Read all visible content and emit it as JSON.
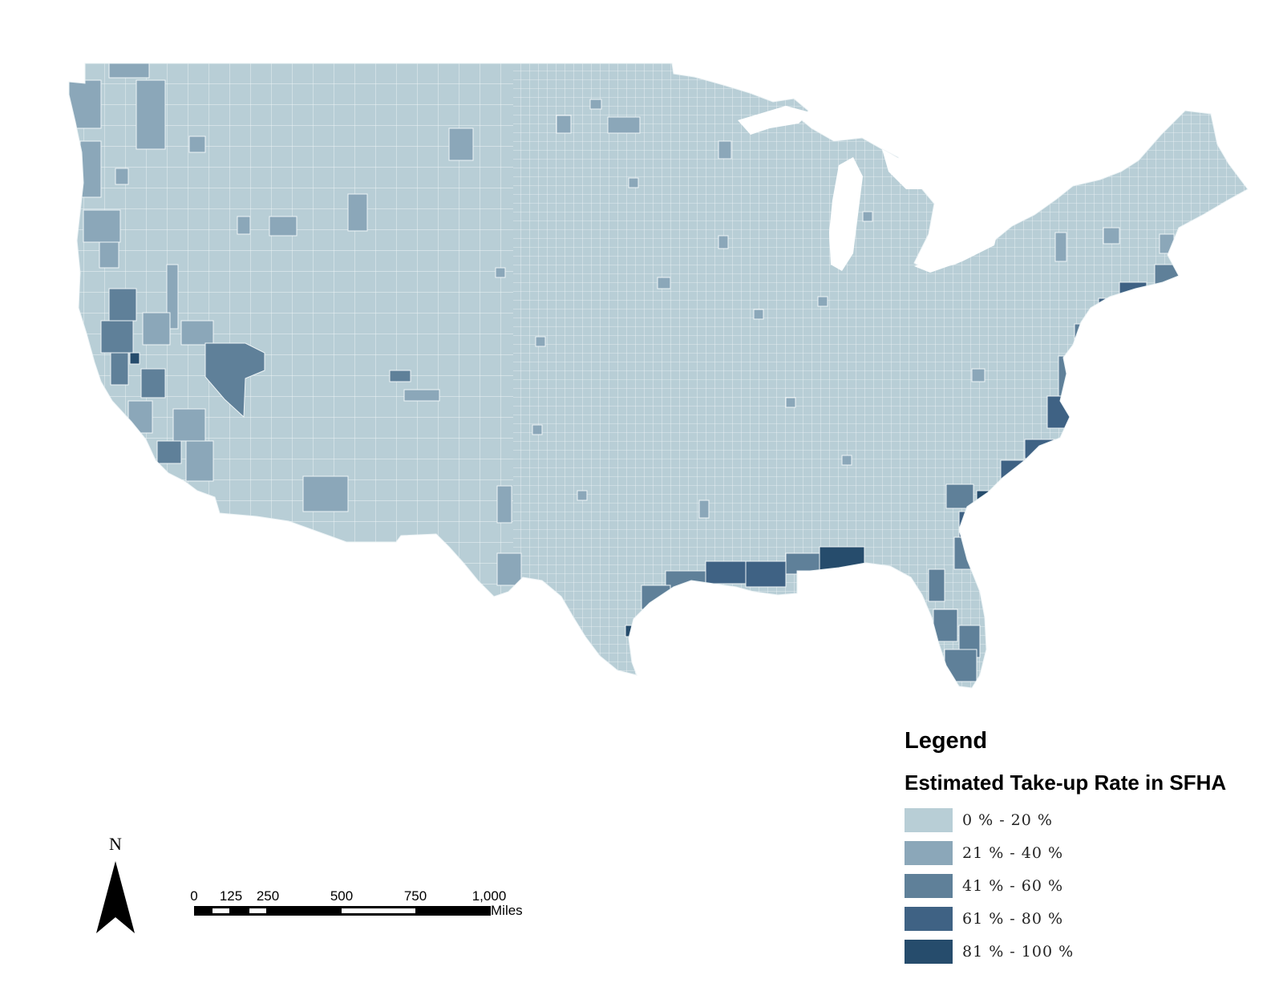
{
  "colors": {
    "class1": "#b8ced6",
    "class2": "#8ba7b9",
    "class3": "#5f8099",
    "class4": "#3f6284",
    "class5": "#264c6c",
    "county_border": "#eef4f6"
  },
  "legend": {
    "title": "Legend",
    "subtitle": "Estimated Take-up Rate in SFHA",
    "classes": [
      {
        "label": "0 % - 20 %",
        "color": "#b8ced6"
      },
      {
        "label": "21 % - 40 %",
        "color": "#8ba7b9"
      },
      {
        "label": "41 % - 60 %",
        "color": "#5f8099"
      },
      {
        "label": "61 % - 80 %",
        "color": "#3f6284"
      },
      {
        "label": "81 % - 100 %",
        "color": "#264c6c"
      }
    ]
  },
  "north_arrow": {
    "label": "N",
    "icon": "north-arrow-icon"
  },
  "scale_bar": {
    "ticks": [
      "0",
      "125",
      "250",
      "500",
      "750",
      "1,000"
    ],
    "unit": "Miles"
  }
}
